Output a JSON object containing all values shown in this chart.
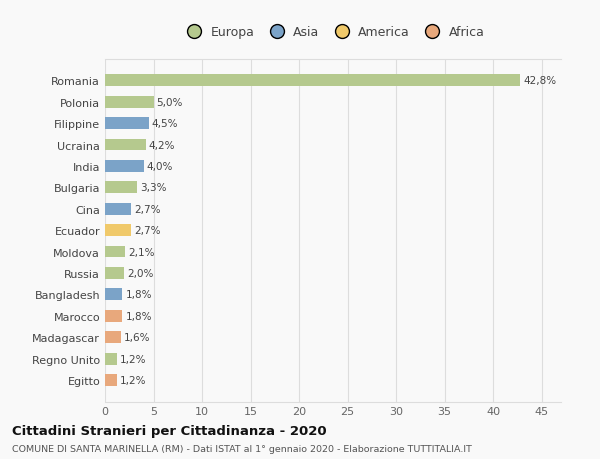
{
  "countries": [
    "Romania",
    "Polonia",
    "Filippine",
    "Ucraina",
    "India",
    "Bulgaria",
    "Cina",
    "Ecuador",
    "Moldova",
    "Russia",
    "Bangladesh",
    "Marocco",
    "Madagascar",
    "Regno Unito",
    "Egitto"
  ],
  "values": [
    42.8,
    5.0,
    4.5,
    4.2,
    4.0,
    3.3,
    2.7,
    2.7,
    2.1,
    2.0,
    1.8,
    1.8,
    1.6,
    1.2,
    1.2
  ],
  "labels": [
    "42,8%",
    "5,0%",
    "4,5%",
    "4,2%",
    "4,0%",
    "3,3%",
    "2,7%",
    "2,7%",
    "2,1%",
    "2,0%",
    "1,8%",
    "1,8%",
    "1,6%",
    "1,2%",
    "1,2%"
  ],
  "colors": [
    "#b5c98e",
    "#b5c98e",
    "#7ba3c8",
    "#b5c98e",
    "#7ba3c8",
    "#b5c98e",
    "#7ba3c8",
    "#f0c96a",
    "#b5c98e",
    "#b5c98e",
    "#7ba3c8",
    "#e8a87c",
    "#e8a87c",
    "#b5c98e",
    "#e8a87c"
  ],
  "legend_labels": [
    "Europa",
    "Asia",
    "America",
    "Africa"
  ],
  "legend_colors": [
    "#b5c98e",
    "#7ba3c8",
    "#f0c96a",
    "#e8a87c"
  ],
  "title": "Cittadini Stranieri per Cittadinanza - 2020",
  "subtitle": "COMUNE DI SANTA MARINELLA (RM) - Dati ISTAT al 1° gennaio 2020 - Elaborazione TUTTITALIA.IT",
  "xlim": [
    0,
    47
  ],
  "xticks": [
    0,
    5,
    10,
    15,
    20,
    25,
    30,
    35,
    40,
    45
  ],
  "background_color": "#f9f9f9",
  "grid_color": "#dddddd"
}
